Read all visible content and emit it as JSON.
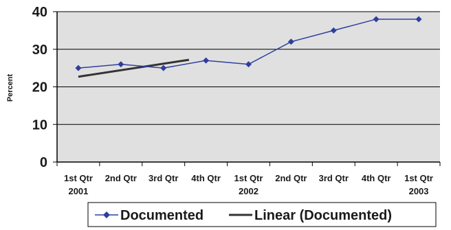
{
  "chart_data": {
    "type": "line",
    "ylabel": "Percent",
    "ylim": [
      0,
      40
    ],
    "y_ticks": [
      0,
      10,
      20,
      30,
      40
    ],
    "grid": true,
    "legend_position": "bottom",
    "categories": [
      [
        "1st Qtr",
        "2001"
      ],
      [
        "2nd Qtr",
        ""
      ],
      [
        "3rd Qtr",
        ""
      ],
      [
        "4th Qtr",
        ""
      ],
      [
        "1st Qtr",
        "2002"
      ],
      [
        "2nd Qtr",
        ""
      ],
      [
        "3rd Qtr",
        ""
      ],
      [
        "4th Qtr",
        ""
      ],
      [
        "1st Qtr",
        "2003"
      ]
    ],
    "series": [
      {
        "name": "Documented",
        "values": [
          25,
          26,
          25,
          27,
          26,
          32,
          35,
          38,
          38
        ],
        "color": "#2e3f9e",
        "marker": "diamond"
      }
    ],
    "trendline": {
      "name": "Linear (Documented)",
      "color": "#333333",
      "x_start_index": 0,
      "x_end_index": 2.6,
      "y_start": 22.7,
      "y_end": 27.2
    }
  }
}
